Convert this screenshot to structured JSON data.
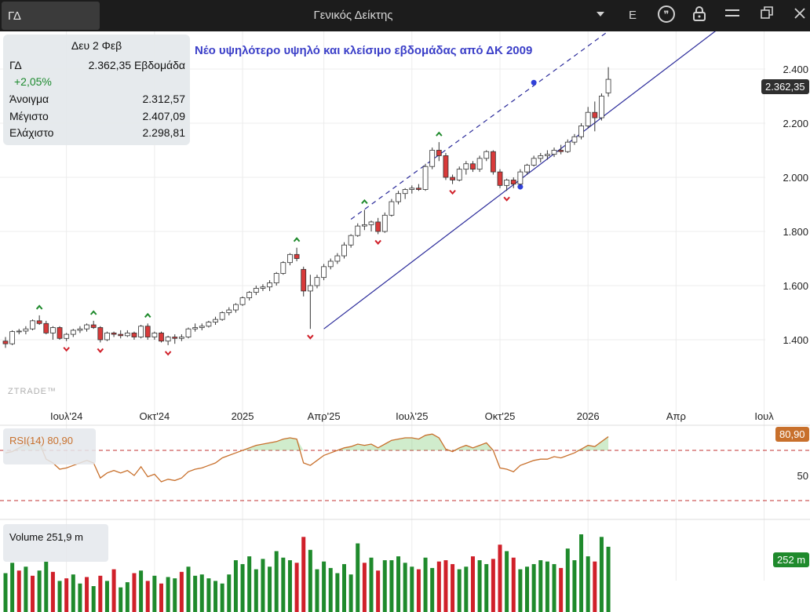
{
  "topbar": {
    "symbol": "ΓΔ",
    "title": "Γενικός Δείκτης",
    "mode_label": "E"
  },
  "info": {
    "date": "Δευ 2 Φεβ",
    "symbol": "ΓΔ",
    "close": "2.362,35",
    "period": "Εβδομάδα",
    "change": "+2,05%",
    "open_label": "Άνοιγμα",
    "open": "2.312,57",
    "high_label": "Μέγιστο",
    "high": "2.407,09",
    "low_label": "Ελάχιστο",
    "low": "2.298,81"
  },
  "annotation": "Νέο υψηλότερο υψηλό και κλείσιμο εβδομάδας από ΔΚ 2009",
  "watermark": "ZTRADE™",
  "price_tag": "2.362,35",
  "rsi_tag": "80,90",
  "vol_tag": "252 m",
  "rsi_label": "RSI(14)  80,90",
  "vol_label": "Volume   251,9 m",
  "colors": {
    "up": "#ffffff",
    "down": "#d83a3a",
    "vol_up": "#1f8a2c",
    "vol_down": "#d0202a",
    "rsi": "#c8702c",
    "trend": "#2a2a9a"
  },
  "chart_data": {
    "type": "candlestick",
    "interval": "weekly",
    "y_range": [
      1320,
      2500
    ],
    "y_ticks": [
      1400,
      1600,
      1800,
      2000,
      2200,
      2400
    ],
    "y_tick_labels": [
      "1.400",
      "1.600",
      "1.800",
      "2.000",
      "2.200",
      "2.400"
    ],
    "x_labels": [
      {
        "label": "Ιουλ'24",
        "index": 9
      },
      {
        "label": "Οκτ'24",
        "index": 22
      },
      {
        "label": "2025",
        "index": 35
      },
      {
        "label": "Απρ'25",
        "index": 47
      },
      {
        "label": "Ιουλ'25",
        "index": 60
      },
      {
        "label": "Οκτ'25",
        "index": 73
      },
      {
        "label": "2026",
        "index": 86
      },
      {
        "label": "Απρ",
        "index": 99
      },
      {
        "label": "Ιουλ",
        "index": 112
      }
    ],
    "ohlc": [
      [
        1395,
        1410,
        1370,
        1385
      ],
      [
        1385,
        1435,
        1380,
        1430
      ],
      [
        1430,
        1440,
        1420,
        1432
      ],
      [
        1432,
        1450,
        1420,
        1440
      ],
      [
        1440,
        1475,
        1435,
        1470
      ],
      [
        1470,
        1490,
        1455,
        1460
      ],
      [
        1460,
        1470,
        1420,
        1425
      ],
      [
        1425,
        1450,
        1400,
        1445
      ],
      [
        1445,
        1450,
        1400,
        1405
      ],
      [
        1405,
        1425,
        1395,
        1420
      ],
      [
        1420,
        1440,
        1410,
        1435
      ],
      [
        1435,
        1450,
        1425,
        1440
      ],
      [
        1440,
        1460,
        1430,
        1455
      ],
      [
        1455,
        1470,
        1440,
        1445
      ],
      [
        1445,
        1450,
        1390,
        1400
      ],
      [
        1400,
        1430,
        1395,
        1425
      ],
      [
        1425,
        1430,
        1410,
        1420
      ],
      [
        1420,
        1435,
        1405,
        1415
      ],
      [
        1415,
        1435,
        1410,
        1425
      ],
      [
        1425,
        1430,
        1400,
        1410
      ],
      [
        1410,
        1455,
        1405,
        1450
      ],
      [
        1450,
        1460,
        1400,
        1410
      ],
      [
        1410,
        1430,
        1400,
        1425
      ],
      [
        1425,
        1430,
        1390,
        1395
      ],
      [
        1395,
        1415,
        1380,
        1410
      ],
      [
        1410,
        1420,
        1385,
        1405
      ],
      [
        1405,
        1420,
        1395,
        1410
      ],
      [
        1410,
        1445,
        1405,
        1440
      ],
      [
        1440,
        1460,
        1430,
        1445
      ],
      [
        1445,
        1460,
        1435,
        1450
      ],
      [
        1450,
        1470,
        1445,
        1465
      ],
      [
        1465,
        1485,
        1455,
        1475
      ],
      [
        1475,
        1505,
        1470,
        1500
      ],
      [
        1500,
        1520,
        1490,
        1510
      ],
      [
        1510,
        1535,
        1500,
        1530
      ],
      [
        1530,
        1560,
        1525,
        1555
      ],
      [
        1555,
        1580,
        1545,
        1575
      ],
      [
        1575,
        1600,
        1565,
        1590
      ],
      [
        1590,
        1605,
        1580,
        1595
      ],
      [
        1595,
        1620,
        1580,
        1610
      ],
      [
        1610,
        1650,
        1600,
        1645
      ],
      [
        1645,
        1690,
        1640,
        1685
      ],
      [
        1685,
        1720,
        1675,
        1715
      ],
      [
        1715,
        1740,
        1690,
        1700
      ],
      [
        1660,
        1670,
        1560,
        1580
      ],
      [
        1580,
        1640,
        1440,
        1600
      ],
      [
        1600,
        1640,
        1590,
        1630
      ],
      [
        1630,
        1680,
        1620,
        1670
      ],
      [
        1670,
        1700,
        1660,
        1690
      ],
      [
        1690,
        1720,
        1680,
        1710
      ],
      [
        1710,
        1760,
        1700,
        1750
      ],
      [
        1750,
        1790,
        1740,
        1785
      ],
      [
        1785,
        1830,
        1780,
        1820
      ],
      [
        1820,
        1880,
        1805,
        1825
      ],
      [
        1825,
        1840,
        1800,
        1835
      ],
      [
        1835,
        1850,
        1790,
        1800
      ],
      [
        1800,
        1870,
        1795,
        1860
      ],
      [
        1860,
        1920,
        1855,
        1910
      ],
      [
        1910,
        1950,
        1900,
        1940
      ],
      [
        1940,
        1960,
        1920,
        1955
      ],
      [
        1955,
        1970,
        1940,
        1960
      ],
      [
        1960,
        1975,
        1950,
        1955
      ],
      [
        1955,
        2050,
        1950,
        2040
      ],
      [
        2040,
        2110,
        2030,
        2100
      ],
      [
        2100,
        2130,
        2060,
        2080
      ],
      [
        2080,
        2090,
        1990,
        2000
      ],
      [
        2000,
        2010,
        1975,
        1990
      ],
      [
        1990,
        2040,
        1985,
        2030
      ],
      [
        2030,
        2060,
        2010,
        2050
      ],
      [
        2050,
        2060,
        2020,
        2030
      ],
      [
        2030,
        2080,
        2020,
        2070
      ],
      [
        2070,
        2100,
        2060,
        2095
      ],
      [
        2095,
        2100,
        2010,
        2020
      ],
      [
        2020,
        2030,
        1960,
        1970
      ],
      [
        1970,
        1995,
        1950,
        1990
      ],
      [
        1990,
        2000,
        1960,
        1975
      ],
      [
        1975,
        2030,
        1970,
        2020
      ],
      [
        2020,
        2050,
        2010,
        2045
      ],
      [
        2045,
        2080,
        2040,
        2070
      ],
      [
        2070,
        2090,
        2055,
        2080
      ],
      [
        2080,
        2100,
        2065,
        2085
      ],
      [
        2085,
        2110,
        2075,
        2100
      ],
      [
        2100,
        2120,
        2085,
        2095
      ],
      [
        2095,
        2140,
        2090,
        2130
      ],
      [
        2130,
        2160,
        2120,
        2150
      ],
      [
        2150,
        2200,
        2140,
        2190
      ],
      [
        2190,
        2260,
        2180,
        2240
      ],
      [
        2240,
        2280,
        2170,
        2220
      ],
      [
        2220,
        2310,
        2210,
        2300
      ],
      [
        2312,
        2407,
        2298,
        2362
      ]
    ],
    "rsi": {
      "name": "RSI(14)",
      "last": 80.9,
      "overbought": 70,
      "oversold": 30,
      "y_ticks": [
        50
      ],
      "y_tick_labels": [
        "50"
      ],
      "values": [
        68,
        69,
        72,
        75,
        78,
        76,
        63,
        60,
        55,
        56,
        58,
        60,
        62,
        60,
        48,
        52,
        54,
        52,
        54,
        50,
        57,
        49,
        51,
        45,
        47,
        46,
        48,
        53,
        55,
        56,
        58,
        60,
        64,
        66,
        68,
        70,
        72,
        74,
        75,
        76,
        77,
        79,
        80,
        79,
        60,
        58,
        62,
        66,
        68,
        70,
        72,
        73,
        75,
        74,
        75,
        72,
        75,
        78,
        79,
        80,
        80,
        79,
        82,
        83,
        80,
        71,
        69,
        72,
        74,
        72,
        74,
        76,
        70,
        56,
        55,
        53,
        58,
        60,
        62,
        63,
        63,
        65,
        64,
        66,
        68,
        71,
        74,
        73,
        77,
        80.9
      ]
    },
    "volume": {
      "name": "Volume",
      "last": 251.9,
      "unit": "m",
      "values": [
        150,
        190,
        160,
        175,
        140,
        160,
        195,
        155,
        120,
        130,
        145,
        110,
        135,
        100,
        140,
        120,
        165,
        95,
        115,
        150,
        160,
        120,
        140,
        110,
        135,
        130,
        155,
        175,
        140,
        145,
        130,
        120,
        110,
        145,
        200,
        185,
        215,
        165,
        205,
        175,
        235,
        210,
        200,
        190,
        290,
        240,
        165,
        195,
        170,
        150,
        185,
        145,
        265,
        190,
        210,
        160,
        200,
        200,
        215,
        190,
        175,
        165,
        210,
        170,
        195,
        200,
        185,
        165,
        175,
        215,
        200,
        185,
        205,
        260,
        235,
        210,
        165,
        175,
        185,
        200,
        195,
        185,
        170,
        245,
        200,
        300,
        215,
        195,
        290,
        252
      ],
      "up": [
        1,
        1,
        0,
        1,
        0,
        1,
        1,
        0,
        1,
        0,
        1,
        1,
        0,
        1,
        0,
        1,
        0,
        1,
        1,
        0,
        1,
        0,
        1,
        0,
        1,
        1,
        0,
        1,
        1,
        1,
        1,
        1,
        1,
        1,
        1,
        1,
        1,
        1,
        1,
        1,
        1,
        1,
        1,
        0,
        0,
        1,
        1,
        1,
        1,
        1,
        1,
        1,
        1,
        0,
        1,
        0,
        1,
        1,
        1,
        1,
        1,
        0,
        1,
        1,
        0,
        0,
        0,
        1,
        1,
        0,
        1,
        1,
        0,
        0,
        1,
        0,
        1,
        1,
        1,
        1,
        1,
        1,
        0,
        1,
        1,
        1,
        1,
        0,
        1,
        1
      ]
    }
  }
}
